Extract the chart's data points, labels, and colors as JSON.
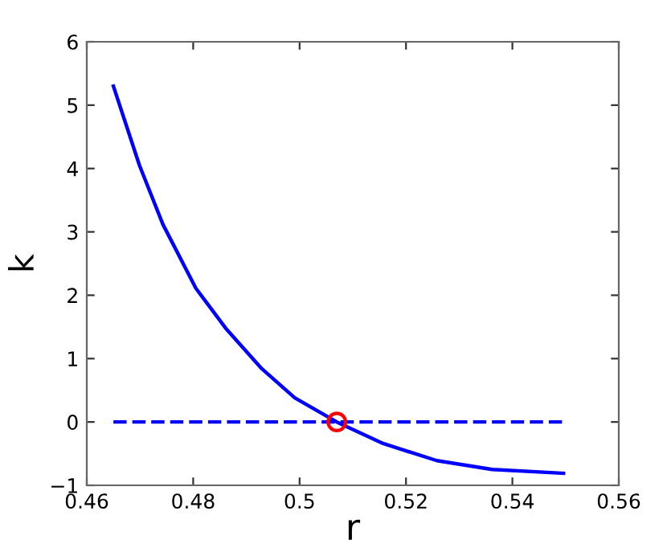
{
  "chart_data": {
    "type": "line",
    "xlabel": "r",
    "ylabel": "k",
    "xlim": [
      0.46,
      0.56
    ],
    "ylim": [
      -1,
      6
    ],
    "xticks": [
      0.46,
      0.48,
      {
        "value": 0.5,
        "label": "0.5"
      },
      0.52,
      0.54,
      0.56
    ],
    "yticks": [
      {
        "value": -1,
        "label": "−1"
      },
      0,
      1,
      2,
      3,
      4,
      5,
      6
    ],
    "series": [
      {
        "color": "#0000ff",
        "line_style": "solid",
        "x": [
          0.465,
          0.4699,
          0.4743,
          0.4805,
          0.4861,
          0.4929,
          0.4991,
          0.507,
          0.5157,
          0.5258,
          0.5362,
          0.5496
        ],
        "values": [
          5.3,
          4.05,
          3.12,
          2.11,
          1.48,
          0.84,
          0.38,
          0,
          -0.34,
          -0.61,
          -0.75,
          -0.81
        ]
      },
      {
        "color": "#0000ff",
        "line_style": "dashed",
        "x": [
          0.465,
          0.5496
        ],
        "values": [
          0,
          0
        ]
      },
      {
        "type": "scatter",
        "color": "#ff0000",
        "marker": "circle",
        "x": [
          0.507
        ],
        "values": [
          0
        ]
      }
    ]
  }
}
